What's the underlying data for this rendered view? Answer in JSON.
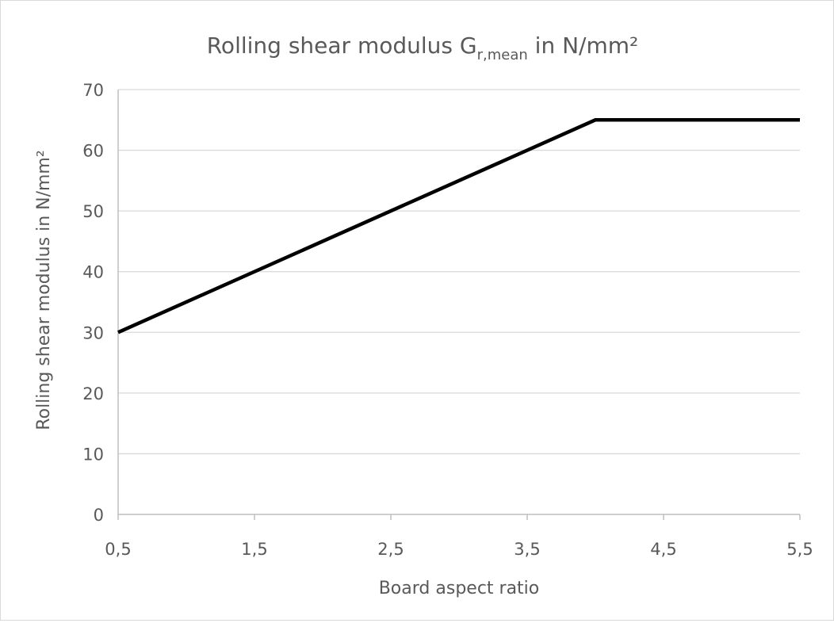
{
  "chart_data": {
    "type": "line",
    "title_main": "Rolling shear modulus G",
    "title_sub": "r,mean",
    "title_tail": " in N/mm²",
    "xlabel": "Board aspect ratio",
    "ylabel": "Rolling shear modulus in N/mm²",
    "xlim": [
      0.5,
      5.5
    ],
    "ylim": [
      0,
      70
    ],
    "x_ticks": [
      "0,5",
      "1,5",
      "2,5",
      "3,5",
      "4,5",
      "5,5"
    ],
    "x_tick_values": [
      0.5,
      1.5,
      2.5,
      3.5,
      4.5,
      5.5
    ],
    "y_ticks": [
      "0",
      "10",
      "20",
      "30",
      "40",
      "50",
      "60",
      "70"
    ],
    "y_tick_values": [
      0,
      10,
      20,
      30,
      40,
      50,
      60,
      70
    ],
    "grid": true,
    "series": [
      {
        "x": [
          0.5,
          4.0,
          5.5
        ],
        "y": [
          30,
          65,
          65
        ],
        "color": "#000000"
      }
    ]
  }
}
